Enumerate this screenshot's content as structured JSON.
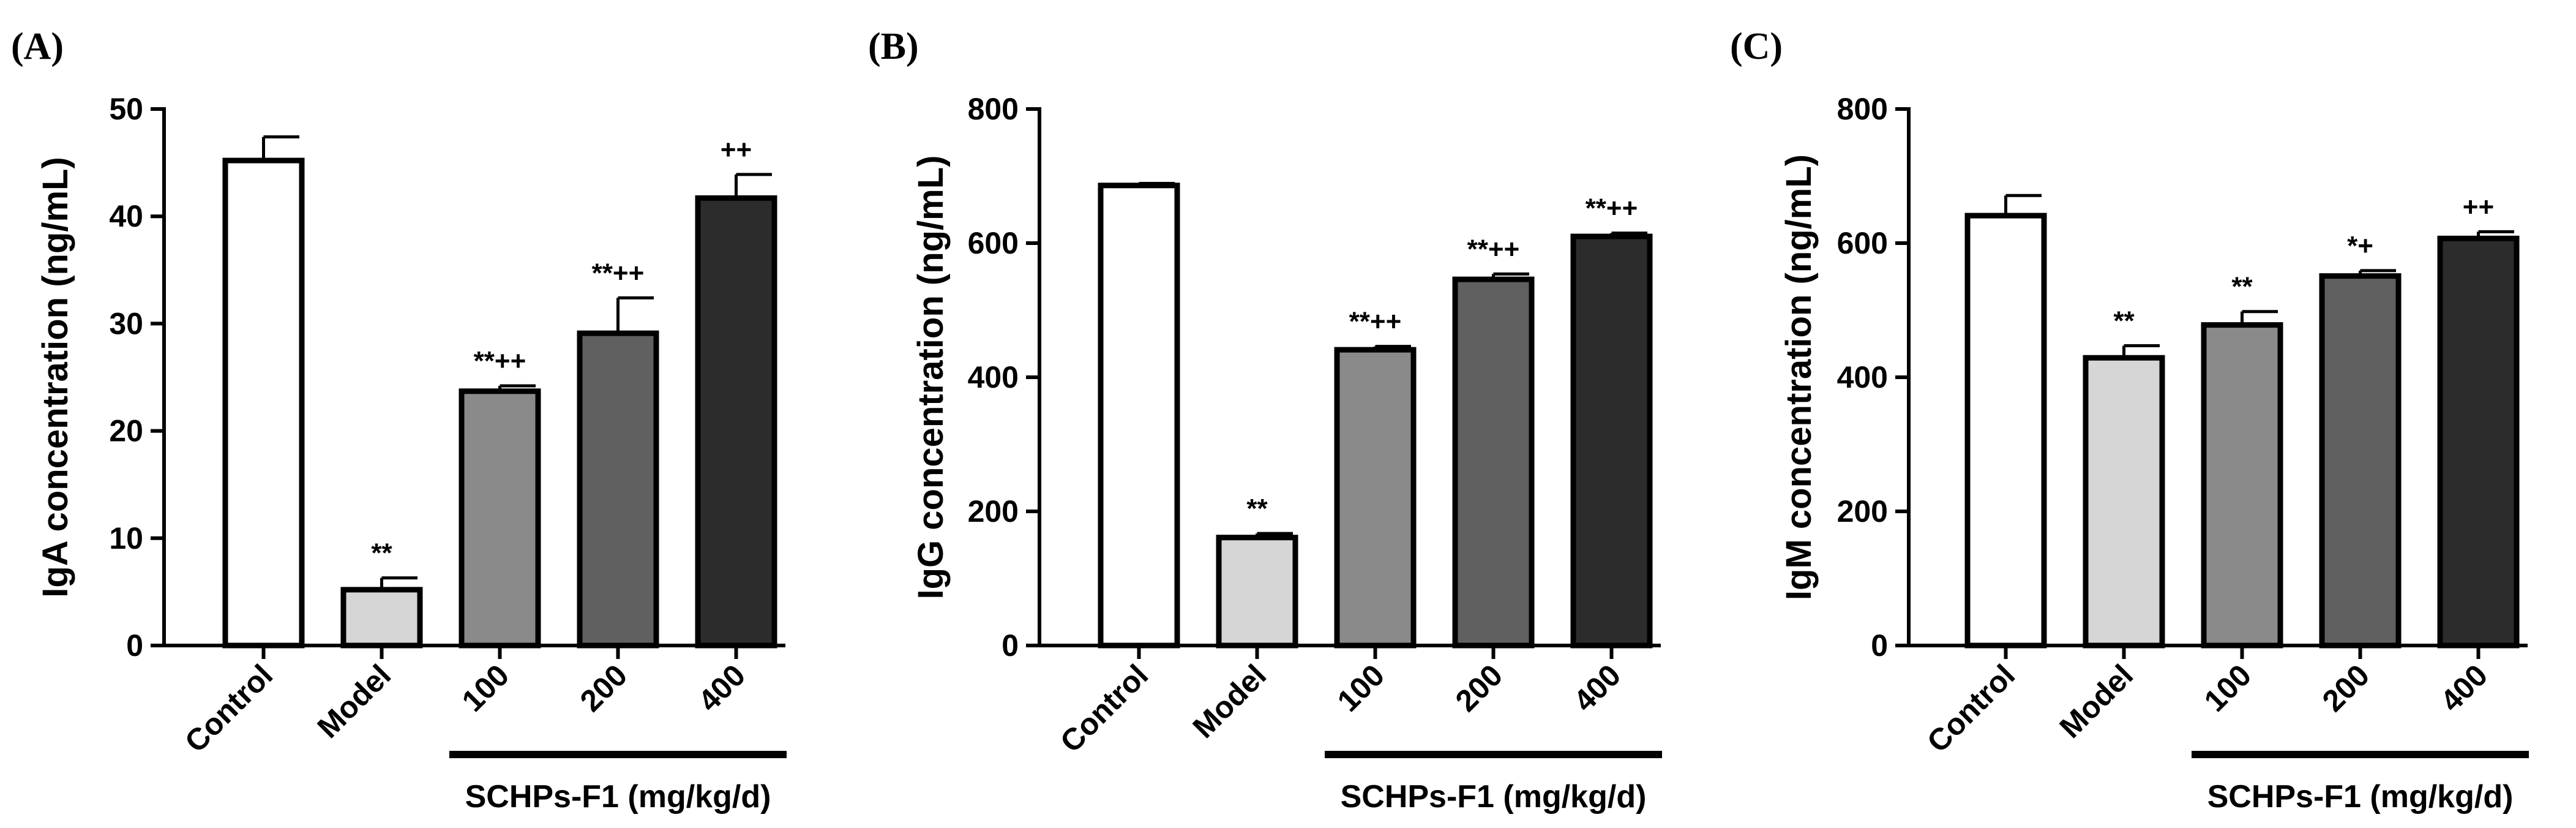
{
  "chart_data": [
    {
      "type": "bar",
      "panel": "(A)",
      "ylabel": "IgA concentration (ng/mL)",
      "ylim": [
        0,
        50
      ],
      "yticks": [
        0,
        10,
        20,
        30,
        40,
        50
      ],
      "categories": [
        "Control",
        "Model",
        "100",
        "200",
        "400"
      ],
      "group_label": "SCHPs-F1 (mg/kg/d)",
      "values": [
        45.2,
        5.2,
        23.7,
        29.1,
        41.7
      ],
      "errors": [
        2.2,
        1.1,
        0.5,
        3.3,
        2.2
      ],
      "significance": [
        "",
        "**",
        "**++",
        "**++",
        "++"
      ],
      "fill_colors": [
        "#ffffff",
        "#d6d6d6",
        "#8a8a8a",
        "#606060",
        "#2c2c2c"
      ]
    },
    {
      "type": "bar",
      "panel": "(B)",
      "ylabel": "IgG concentration (ng/mL)",
      "ylim": [
        0,
        800
      ],
      "yticks": [
        0,
        200,
        400,
        600,
        800
      ],
      "categories": [
        "Control",
        "Model",
        "100",
        "200",
        "400"
      ],
      "group_label": "SCHPs-F1 (mg/kg/d)",
      "values": [
        686,
        161,
        441,
        546,
        610
      ],
      "errors": [
        3,
        6,
        5,
        8,
        5
      ],
      "significance": [
        "",
        "**",
        "**++",
        "**++",
        "**++"
      ],
      "fill_colors": [
        "#ffffff",
        "#d6d6d6",
        "#8a8a8a",
        "#606060",
        "#2c2c2c"
      ]
    },
    {
      "type": "bar",
      "panel": "(C)",
      "ylabel": "IgM concentration (ng/mL)",
      "ylim": [
        0,
        800
      ],
      "yticks": [
        0,
        200,
        400,
        600,
        800
      ],
      "categories": [
        "Control",
        "Model",
        "100",
        "200",
        "400"
      ],
      "group_label": "SCHPs-F1 (mg/kg/d)",
      "values": [
        641,
        429,
        478,
        551,
        607
      ],
      "errors": [
        30,
        18,
        20,
        8,
        10
      ],
      "significance": [
        "",
        "**",
        "**",
        "*+",
        "++"
      ],
      "fill_colors": [
        "#ffffff",
        "#d6d6d6",
        "#8a8a8a",
        "#606060",
        "#2c2c2c"
      ]
    }
  ]
}
